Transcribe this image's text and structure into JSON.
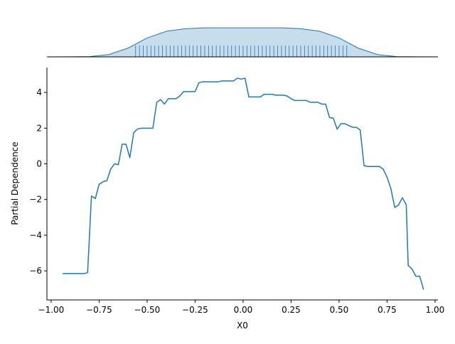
{
  "chart_data": [
    {
      "type": "kde",
      "color": "#1f77b4",
      "x": [
        -1.02,
        -0.9,
        -0.8,
        -0.7,
        -0.6,
        -0.5,
        -0.4,
        -0.3,
        -0.2,
        0.0,
        0.2,
        0.3,
        0.4,
        0.5,
        0.6,
        0.7,
        0.8,
        0.9,
        1.015
      ],
      "values": [
        0,
        0.002,
        0.01,
        0.08,
        0.3,
        0.65,
        0.88,
        0.97,
        1,
        1,
        1,
        0.97,
        0.88,
        0.65,
        0.3,
        0.08,
        0.01,
        0.002,
        0
      ],
      "rug": [
        -0.56,
        -0.54,
        -0.52,
        -0.5,
        -0.48,
        -0.46,
        -0.44,
        -0.42,
        -0.4,
        -0.38,
        -0.36,
        -0.34,
        -0.32,
        -0.3,
        -0.28,
        -0.26,
        -0.24,
        -0.22,
        -0.2,
        -0.18,
        -0.16,
        -0.14,
        -0.12,
        -0.1,
        -0.08,
        -0.06,
        -0.04,
        -0.02,
        0,
        0.02,
        0.04,
        0.06,
        0.08,
        0.1,
        0.12,
        0.14,
        0.16,
        0.18,
        0.2,
        0.22,
        0.24,
        0.26,
        0.28,
        0.3,
        0.32,
        0.34,
        0.36,
        0.38,
        0.4,
        0.42,
        0.44,
        0.46,
        0.48,
        0.5,
        0.52,
        0.54
      ],
      "xlim": [
        -1.022,
        1.015
      ],
      "ylim": [
        0,
        1.1
      ]
    },
    {
      "type": "line",
      "xlabel": "X0",
      "ylabel": "Partial Dependence",
      "color": "#1f77b4",
      "x": [
        -0.94,
        -0.83,
        -0.81,
        -0.79,
        -0.77,
        -0.75,
        -0.73,
        -0.71,
        -0.69,
        -0.67,
        -0.65,
        -0.63,
        -0.61,
        -0.59,
        -0.57,
        -0.55,
        -0.53,
        -0.51,
        -0.47,
        -0.45,
        -0.43,
        -0.41,
        -0.39,
        -0.35,
        -0.33,
        -0.31,
        -0.25,
        -0.23,
        -0.21,
        -0.13,
        -0.11,
        -0.05,
        -0.03,
        -0.01,
        0.01,
        0.03,
        0.09,
        0.11,
        0.15,
        0.17,
        0.21,
        0.23,
        0.25,
        0.27,
        0.29,
        0.33,
        0.35,
        0.39,
        0.41,
        0.43,
        0.45,
        0.47,
        0.49,
        0.51,
        0.53,
        0.55,
        0.57,
        0.59,
        0.61,
        0.63,
        0.65,
        0.71,
        0.73,
        0.75,
        0.77,
        0.79,
        0.81,
        0.83,
        0.85,
        0.86,
        0.88,
        0.9,
        0.92,
        0.94
      ],
      "values": [
        -6.15,
        -6.15,
        -6.1,
        -1.8,
        -1.95,
        -1.15,
        -1.0,
        -0.95,
        -0.3,
        0.0,
        -0.05,
        1.1,
        1.1,
        0.35,
        1.75,
        1.95,
        2.0,
        2.0,
        2.0,
        3.45,
        3.6,
        3.35,
        3.65,
        3.65,
        3.8,
        4.05,
        4.05,
        4.55,
        4.6,
        4.6,
        4.65,
        4.65,
        4.8,
        4.75,
        4.8,
        3.75,
        3.75,
        3.9,
        3.9,
        3.85,
        3.85,
        3.8,
        3.65,
        3.55,
        3.55,
        3.55,
        3.45,
        3.45,
        3.35,
        3.35,
        2.6,
        2.55,
        1.95,
        2.25,
        2.25,
        2.15,
        2.05,
        2.05,
        1.9,
        -0.1,
        -0.15,
        -0.15,
        -0.3,
        -0.75,
        -1.4,
        -2.45,
        -2.3,
        -1.9,
        -2.3,
        -5.7,
        -5.9,
        -6.3,
        -6.3,
        -7.05
      ],
      "xlim": [
        -1.022,
        1.015
      ],
      "ylim": [
        -7.63,
        5.4
      ],
      "xticks": [
        {
          "value": -1,
          "label": "−1.00"
        },
        {
          "value": -0.75,
          "label": "−0.75"
        },
        {
          "value": -0.5,
          "label": "−0.50"
        },
        {
          "value": -0.25,
          "label": "−0.25"
        },
        {
          "value": 0,
          "label": "0.00"
        },
        {
          "value": 0.25,
          "label": "0.25"
        },
        {
          "value": 0.5,
          "label": "0.50"
        },
        {
          "value": 0.75,
          "label": "0.75"
        },
        {
          "value": 1,
          "label": "1.00"
        }
      ],
      "yticks": [
        {
          "value": -6,
          "label": "−6"
        },
        {
          "value": -4,
          "label": "−4"
        },
        {
          "value": -2,
          "label": "−2"
        },
        0,
        2,
        4
      ]
    }
  ]
}
